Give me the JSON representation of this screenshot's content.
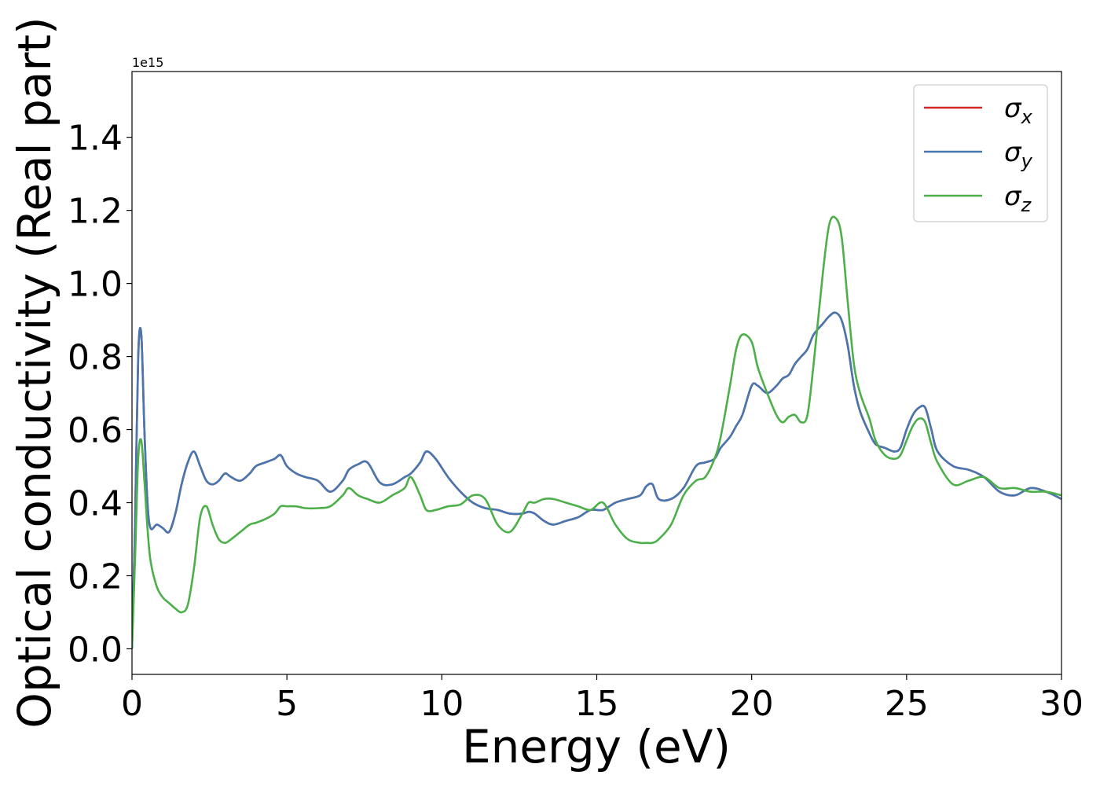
{
  "chart_data": {
    "type": "line",
    "xlabel": "Energy (eV)",
    "ylabel": "Optical conductivity (Real part)",
    "offset_label": "1e15",
    "y_scale": 1000000000000000.0,
    "xlim": [
      0,
      30
    ],
    "ylim": [
      -0.07,
      1.58
    ],
    "grid": false,
    "legend_placement": "top-right",
    "x_ticks": [
      0,
      5,
      10,
      15,
      20,
      25,
      30
    ],
    "x_tick_labels": [
      "0",
      "5",
      "10",
      "15",
      "20",
      "25",
      "30"
    ],
    "y_ticks": [
      0.0,
      0.2,
      0.4,
      0.6,
      0.8,
      1.0,
      1.2,
      1.4
    ],
    "y_tick_labels": [
      "0.0",
      "0.2",
      "0.4",
      "0.6",
      "0.8",
      "1.0",
      "1.2",
      "1.4"
    ],
    "x": [
      0,
      0.1,
      0.2,
      0.3,
      0.4,
      0.5,
      0.6,
      0.8,
      1.0,
      1.2,
      1.4,
      1.6,
      1.8,
      2.0,
      2.2,
      2.4,
      2.6,
      2.8,
      3.0,
      3.2,
      3.5,
      3.8,
      4.0,
      4.3,
      4.6,
      4.8,
      5.0,
      5.3,
      5.6,
      6.0,
      6.4,
      6.8,
      7.0,
      7.3,
      7.6,
      8.0,
      8.4,
      8.8,
      9.0,
      9.3,
      9.5,
      9.8,
      10.2,
      10.6,
      11.0,
      11.4,
      11.8,
      12.2,
      12.6,
      12.8,
      13.0,
      13.3,
      13.6,
      14.0,
      14.4,
      14.8,
      15.2,
      15.6,
      16.0,
      16.4,
      16.6,
      16.8,
      17.0,
      17.4,
      17.8,
      18.2,
      18.5,
      18.8,
      19.0,
      19.3,
      19.5,
      19.7,
      20.0,
      20.2,
      20.5,
      20.8,
      21.0,
      21.2,
      21.4,
      21.6,
      21.8,
      22.0,
      22.3,
      22.5,
      22.7,
      22.9,
      23.1,
      23.3,
      23.5,
      23.8,
      24.0,
      24.3,
      24.6,
      24.8,
      25.0,
      25.2,
      25.4,
      25.6,
      25.8,
      26.0,
      26.5,
      27.0,
      27.5,
      28.0,
      28.5,
      29.0,
      29.5,
      30.0
    ],
    "series": [
      {
        "name": "σ_x",
        "legend_base": "σ",
        "legend_sub": "x",
        "color": "#d62728",
        "values": [
          0.0,
          0.35,
          0.8,
          0.86,
          0.6,
          0.4,
          0.33,
          0.34,
          0.33,
          0.32,
          0.37,
          0.45,
          0.51,
          0.54,
          0.5,
          0.46,
          0.45,
          0.46,
          0.48,
          0.47,
          0.46,
          0.48,
          0.5,
          0.51,
          0.52,
          0.53,
          0.5,
          0.48,
          0.47,
          0.46,
          0.43,
          0.46,
          0.49,
          0.505,
          0.51,
          0.455,
          0.45,
          0.47,
          0.48,
          0.51,
          0.54,
          0.52,
          0.47,
          0.43,
          0.4,
          0.385,
          0.38,
          0.37,
          0.37,
          0.375,
          0.37,
          0.35,
          0.34,
          0.35,
          0.36,
          0.38,
          0.38,
          0.4,
          0.41,
          0.42,
          0.445,
          0.45,
          0.41,
          0.41,
          0.44,
          0.5,
          0.51,
          0.52,
          0.55,
          0.58,
          0.61,
          0.64,
          0.72,
          0.72,
          0.7,
          0.72,
          0.74,
          0.75,
          0.78,
          0.8,
          0.82,
          0.86,
          0.89,
          0.91,
          0.92,
          0.9,
          0.83,
          0.72,
          0.65,
          0.59,
          0.56,
          0.55,
          0.54,
          0.55,
          0.6,
          0.64,
          0.66,
          0.66,
          0.6,
          0.54,
          0.5,
          0.49,
          0.47,
          0.43,
          0.42,
          0.44,
          0.43,
          0.41
        ]
      },
      {
        "name": "σ_y",
        "legend_base": "σ",
        "legend_sub": "y",
        "color": "#4677b0",
        "values": [
          0.0,
          0.35,
          0.8,
          0.86,
          0.6,
          0.4,
          0.33,
          0.34,
          0.33,
          0.32,
          0.37,
          0.45,
          0.51,
          0.54,
          0.5,
          0.46,
          0.45,
          0.46,
          0.48,
          0.47,
          0.46,
          0.48,
          0.5,
          0.51,
          0.52,
          0.53,
          0.5,
          0.48,
          0.47,
          0.46,
          0.43,
          0.46,
          0.49,
          0.505,
          0.51,
          0.455,
          0.45,
          0.47,
          0.48,
          0.51,
          0.54,
          0.52,
          0.47,
          0.43,
          0.4,
          0.385,
          0.38,
          0.37,
          0.37,
          0.375,
          0.37,
          0.35,
          0.34,
          0.35,
          0.36,
          0.38,
          0.38,
          0.4,
          0.41,
          0.42,
          0.445,
          0.45,
          0.41,
          0.41,
          0.44,
          0.5,
          0.51,
          0.52,
          0.55,
          0.58,
          0.61,
          0.64,
          0.72,
          0.72,
          0.7,
          0.72,
          0.74,
          0.75,
          0.78,
          0.8,
          0.82,
          0.86,
          0.89,
          0.91,
          0.92,
          0.9,
          0.83,
          0.72,
          0.65,
          0.59,
          0.56,
          0.55,
          0.54,
          0.55,
          0.6,
          0.64,
          0.66,
          0.66,
          0.6,
          0.54,
          0.5,
          0.49,
          0.47,
          0.43,
          0.42,
          0.44,
          0.43,
          0.41
        ]
      },
      {
        "name": "σ_z",
        "legend_base": "σ",
        "legend_sub": "z",
        "color": "#4daf4a",
        "values": [
          0.0,
          0.25,
          0.52,
          0.57,
          0.46,
          0.33,
          0.24,
          0.17,
          0.14,
          0.125,
          0.11,
          0.1,
          0.12,
          0.22,
          0.36,
          0.39,
          0.34,
          0.3,
          0.29,
          0.3,
          0.32,
          0.34,
          0.345,
          0.355,
          0.37,
          0.39,
          0.39,
          0.39,
          0.385,
          0.385,
          0.39,
          0.42,
          0.44,
          0.42,
          0.41,
          0.4,
          0.42,
          0.44,
          0.47,
          0.42,
          0.38,
          0.38,
          0.39,
          0.395,
          0.42,
          0.41,
          0.34,
          0.32,
          0.37,
          0.4,
          0.4,
          0.41,
          0.41,
          0.4,
          0.39,
          0.38,
          0.4,
          0.34,
          0.3,
          0.29,
          0.29,
          0.29,
          0.3,
          0.34,
          0.42,
          0.46,
          0.47,
          0.52,
          0.58,
          0.72,
          0.82,
          0.86,
          0.84,
          0.77,
          0.7,
          0.64,
          0.62,
          0.635,
          0.64,
          0.62,
          0.64,
          0.78,
          1.03,
          1.16,
          1.18,
          1.13,
          0.95,
          0.78,
          0.7,
          0.63,
          0.57,
          0.53,
          0.52,
          0.53,
          0.57,
          0.61,
          0.63,
          0.62,
          0.56,
          0.51,
          0.45,
          0.46,
          0.47,
          0.44,
          0.44,
          0.43,
          0.43,
          0.42
        ]
      }
    ]
  }
}
